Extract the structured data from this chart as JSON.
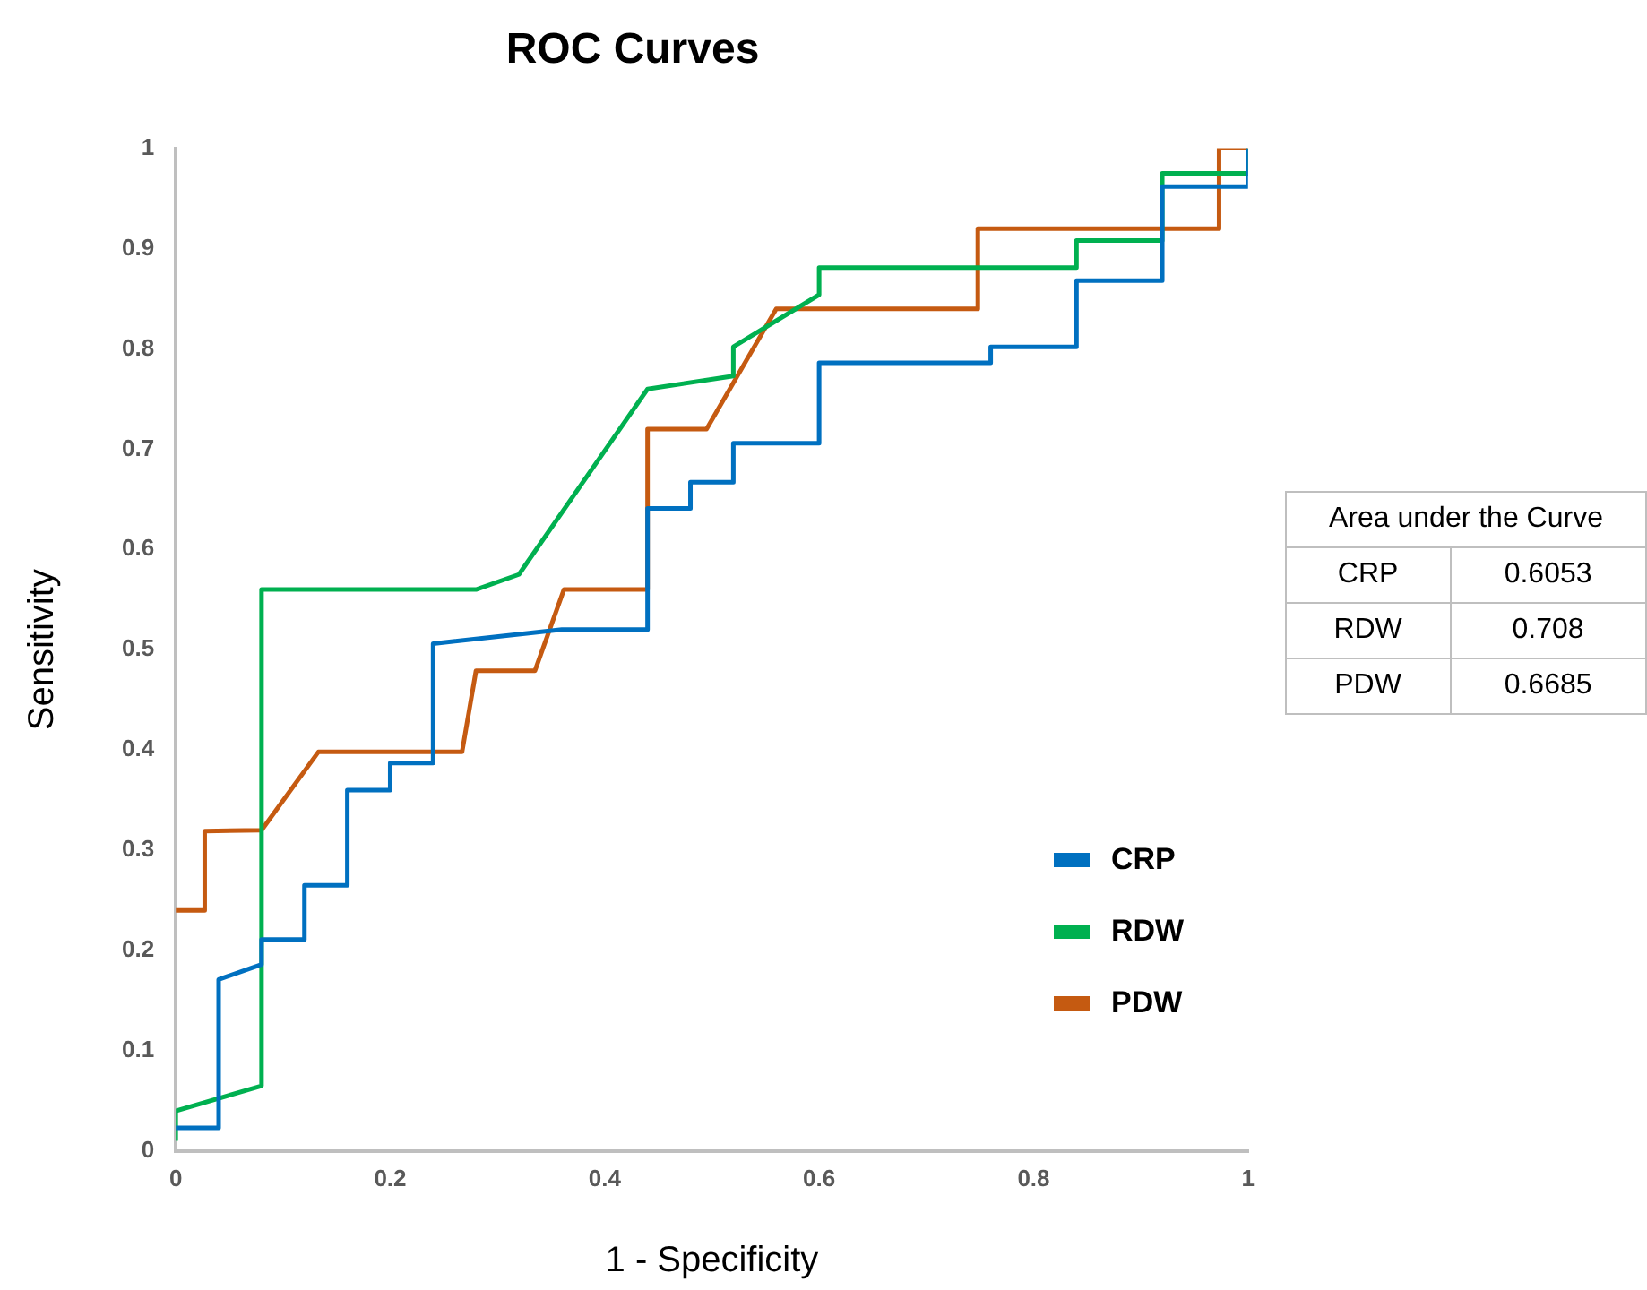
{
  "chart_data": {
    "type": "line",
    "title": "ROC Curves",
    "xlabel": "1 - Specificity",
    "ylabel": "Sensitivity",
    "xlim": [
      0,
      1
    ],
    "xticks": [
      0,
      0.2,
      0.4,
      0.6,
      0.8,
      1
    ],
    "ylim": [
      0,
      1
    ],
    "yticks": [
      0,
      0.1,
      0.2,
      0.3,
      0.4,
      0.5,
      0.6,
      0.7,
      0.8,
      0.9,
      1
    ],
    "grid": false,
    "legend": "bottom right",
    "marker": "none",
    "line_style": "solid",
    "series": [
      {
        "name": "CRP",
        "color": "#0070c0",
        "x": [
          0,
          0.04,
          0.04,
          0.08,
          0.08,
          0.12,
          0.12,
          0.16,
          0.16,
          0.2,
          0.2,
          0.24,
          0.24,
          0.36,
          0.44,
          0.44,
          0.48,
          0.48,
          0.52,
          0.52,
          0.6,
          0.6,
          0.76,
          0.76,
          0.84,
          0.84,
          0.92,
          0.92,
          1,
          1
        ],
        "values": [
          0.023,
          0.023,
          0.171,
          0.186,
          0.211,
          0.211,
          0.265,
          0.265,
          0.36,
          0.36,
          0.387,
          0.387,
          0.506,
          0.52,
          0.52,
          0.641,
          0.641,
          0.667,
          0.667,
          0.706,
          0.706,
          0.786,
          0.786,
          0.802,
          0.802,
          0.868,
          0.868,
          0.962,
          0.962,
          1
        ]
      },
      {
        "name": "RDW",
        "color": "#00b050",
        "x": [
          0,
          0,
          0.08,
          0.08,
          0.28,
          0.32,
          0.44,
          0.52,
          0.52,
          0.6,
          0.6,
          0.84,
          0.84,
          0.92,
          0.92,
          1,
          1
        ],
        "values": [
          0.01,
          0.04,
          0.065,
          0.56,
          0.56,
          0.575,
          0.76,
          0.773,
          0.802,
          0.854,
          0.881,
          0.881,
          0.908,
          0.908,
          0.975,
          0.975,
          1
        ]
      },
      {
        "name": "PDW",
        "color": "#c55a11",
        "x": [
          0,
          0.027,
          0.027,
          0.08,
          0.133,
          0.267,
          0.28,
          0.335,
          0.362,
          0.44,
          0.44,
          0.495,
          0.56,
          0.748,
          0.748,
          0.973,
          0.973,
          1
        ],
        "values": [
          0.24,
          0.24,
          0.319,
          0.32,
          0.398,
          0.398,
          0.479,
          0.479,
          0.56,
          0.56,
          0.72,
          0.72,
          0.84,
          0.84,
          0.92,
          0.92,
          1,
          1
        ]
      }
    ],
    "annotations": [
      "Area under the Curve",
      "CRP",
      "0.6053",
      "RDW",
      "0.708",
      "PDW",
      "0.6685"
    ]
  }
}
